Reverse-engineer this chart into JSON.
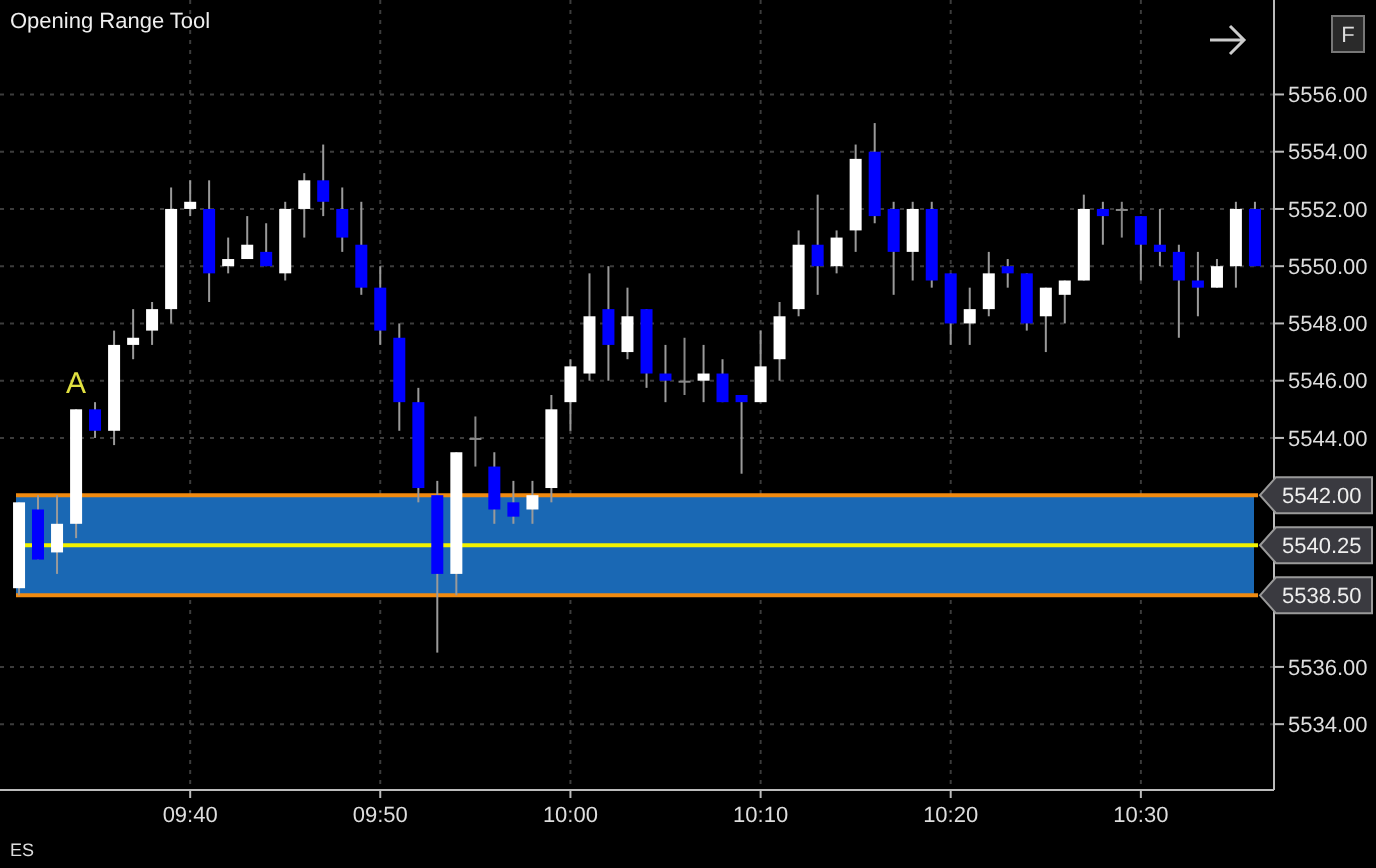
{
  "chart_data": {
    "type": "candlestick",
    "title": "Opening Range Tool",
    "x": [
      9.5167,
      9.5333,
      9.55,
      9.5667,
      9.5833,
      9.6,
      9.6167,
      9.6333,
      9.65,
      9.6667,
      9.6833,
      9.7,
      9.7167,
      9.7333,
      9.75,
      9.7667,
      9.7833,
      9.8,
      9.8167,
      9.8333,
      9.85,
      9.8667,
      9.8833,
      9.9,
      9.9167,
      9.9333,
      9.95,
      9.9667,
      9.9833,
      10,
      10.0167,
      10.0333,
      10.05,
      10.0667,
      10.0833,
      10.1,
      10.1167,
      10.1333,
      10.15,
      10.1667,
      10.1833,
      10.2,
      10.2167,
      10.2333,
      10.25,
      10.2667,
      10.2833,
      10.3,
      10.3167,
      10.3333,
      10.35,
      10.3667,
      10.3833,
      10.4,
      10.4167,
      10.4333,
      10.45,
      10.4667,
      10.4833,
      10.5,
      10.5167,
      10.5333,
      10.55,
      10.5667,
      10.5833,
      10.6
    ],
    "ohlc": [
      [
        5538.75,
        5541.75,
        5538.5,
        5541.75
      ],
      [
        5541.5,
        5542,
        5539.75,
        5539.75
      ],
      [
        5540,
        5542,
        5539.25,
        5541
      ],
      [
        5541,
        5545,
        5540.5,
        5545
      ],
      [
        5545,
        5545.25,
        5544,
        5544.25
      ],
      [
        5544.25,
        5547.75,
        5543.75,
        5547.25
      ],
      [
        5547.25,
        5548.5,
        5546.75,
        5547.5
      ],
      [
        5547.75,
        5548.75,
        5547.25,
        5548.5
      ],
      [
        5548.5,
        5552.75,
        5548,
        5552
      ],
      [
        5552,
        5553,
        5551.75,
        5552.25
      ],
      [
        5552,
        5553,
        5548.75,
        5549.75
      ],
      [
        5550,
        5551,
        5549.75,
        5550.25
      ],
      [
        5550.25,
        5551.75,
        5550.25,
        5550.75
      ],
      [
        5550.5,
        5551.5,
        5550,
        5550
      ],
      [
        5549.75,
        5552.25,
        5549.5,
        5552
      ],
      [
        5552,
        5553.25,
        5551,
        5553
      ],
      [
        5553,
        5554.25,
        5551.75,
        5552.25
      ],
      [
        5552,
        5552.75,
        5550.5,
        5551
      ],
      [
        5550.75,
        5552.25,
        5549,
        5549.25
      ],
      [
        5549.25,
        5550,
        5547.25,
        5547.75
      ],
      [
        5547.5,
        5548,
        5544.25,
        5545.25
      ],
      [
        5545.25,
        5545.75,
        5541.75,
        5542.25
      ],
      [
        5542,
        5542.5,
        5536.5,
        5539.25
      ],
      [
        5539.25,
        5543.5,
        5538.5,
        5543.5
      ],
      [
        5544,
        5544.75,
        5543,
        5544
      ],
      [
        5543,
        5543.5,
        5541,
        5541.5
      ],
      [
        5541.75,
        5542.5,
        5541,
        5541.25
      ],
      [
        5541.5,
        5542.5,
        5541,
        5542
      ],
      [
        5542.25,
        5545.5,
        5541.75,
        5545
      ],
      [
        5545.25,
        5546.75,
        5544.25,
        5546.5
      ],
      [
        5546.25,
        5549.75,
        5546,
        5548.25
      ],
      [
        5548.5,
        5550,
        5546,
        5547.25
      ],
      [
        5547,
        5549.25,
        5546.75,
        5548.25
      ],
      [
        5548.5,
        5548.5,
        5545.75,
        5546.25
      ],
      [
        5546.25,
        5547.25,
        5545.25,
        5546
      ],
      [
        5546,
        5547.5,
        5545.5,
        5546
      ],
      [
        5546,
        5547.25,
        5545.25,
        5546.25
      ],
      [
        5546.25,
        5546.75,
        5545.25,
        5545.25
      ],
      [
        5545.5,
        5545.5,
        5542.75,
        5545.25
      ],
      [
        5545.25,
        5547.75,
        5545.25,
        5546.5
      ],
      [
        5546.75,
        5548.75,
        5546,
        5548.25
      ],
      [
        5548.5,
        5551.25,
        5548.25,
        5550.75
      ],
      [
        5550.75,
        5552.5,
        5549,
        5550
      ],
      [
        5550,
        5551.25,
        5549.75,
        5551
      ],
      [
        5551.25,
        5554.25,
        5550.5,
        5553.75
      ],
      [
        5554,
        5555,
        5551.5,
        5551.75
      ],
      [
        5552,
        5552.25,
        5549,
        5550.5
      ],
      [
        5550.5,
        5552.25,
        5549.5,
        5552
      ],
      [
        5552,
        5552.25,
        5549.25,
        5549.5
      ],
      [
        5549.75,
        5549.75,
        5547.25,
        5548
      ],
      [
        5548,
        5549.25,
        5547.25,
        5548.5
      ],
      [
        5548.5,
        5550.5,
        5548.25,
        5549.75
      ],
      [
        5550,
        5550.25,
        5549.25,
        5549.75
      ],
      [
        5549.75,
        5549.75,
        5547.75,
        5548
      ],
      [
        5548.25,
        5549.25,
        5547,
        5549.25
      ],
      [
        5549,
        5549.5,
        5548,
        5549.5
      ],
      [
        5549.5,
        5552.5,
        5549.5,
        5552
      ],
      [
        5552,
        5552.25,
        5550.75,
        5551.75
      ],
      [
        5552,
        5552.25,
        5551,
        5552
      ],
      [
        5551.75,
        5551.75,
        5549.5,
        5550.75
      ],
      [
        5550.75,
        5552,
        5550,
        5550.5
      ],
      [
        5550.5,
        5550.75,
        5547.5,
        5549.5
      ],
      [
        5549.5,
        5550.5,
        5548.25,
        5549.25
      ],
      [
        5549.25,
        5550.25,
        5549.25,
        5550
      ],
      [
        5550,
        5552.25,
        5549.25,
        5552
      ],
      [
        5552,
        5552.25,
        5550,
        5550
      ]
    ],
    "xlim": [
      9.5,
      10.6167
    ],
    "xticks": [
      {
        "value": 9.6667,
        "label": "09:40"
      },
      {
        "value": 9.8333,
        "label": "09:50"
      },
      {
        "value": 10,
        "label": "10:00"
      },
      {
        "value": 10.1667,
        "label": "10:10"
      },
      {
        "value": 10.3333,
        "label": "10:20"
      },
      {
        "value": 10.5,
        "label": "10:30"
      }
    ],
    "ylim": [
      5531.7,
      5559.3
    ],
    "yticks": [
      {
        "value": 5534,
        "label": "5534.00"
      },
      {
        "value": 5536,
        "label": "5536.00"
      },
      {
        "value": 5544,
        "label": "5544.00"
      },
      {
        "value": 5546,
        "label": "5546.00"
      },
      {
        "value": 5548,
        "label": "5548.00"
      },
      {
        "value": 5550,
        "label": "5550.00"
      },
      {
        "value": 5552,
        "label": "5552.00"
      },
      {
        "value": 5554,
        "label": "5554.00"
      },
      {
        "value": 5556,
        "label": "5556.00"
      }
    ],
    "grid": true,
    "bands": [
      {
        "axis": "y",
        "from": 5538.5,
        "to": 5542,
        "color": "#1a68b4"
      }
    ],
    "ref_lines": [
      {
        "axis": "y",
        "value": 5542,
        "label": "5542.00",
        "color": "#f08a10"
      },
      {
        "axis": "y",
        "value": 5540.25,
        "label": "5540.25",
        "color": "#f2f200"
      },
      {
        "axis": "y",
        "value": 5538.5,
        "label": "5538.50",
        "color": "#f08a10"
      }
    ],
    "annotations": [
      {
        "text": "A",
        "x": 9.5667,
        "y": 5545
      },
      "ES",
      "F"
    ]
  }
}
